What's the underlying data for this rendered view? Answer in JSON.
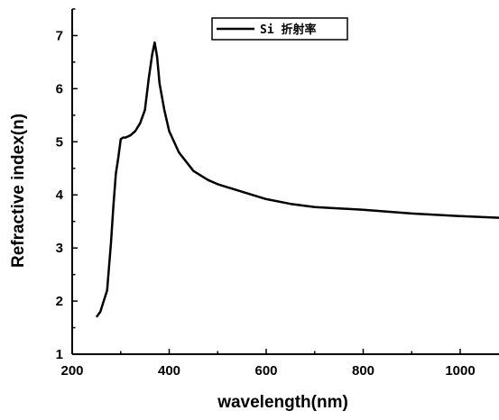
{
  "chart_data": {
    "type": "line",
    "xlabel": "wavelength(nm)",
    "ylabel": "Refractive index(n)",
    "xlim": [
      200,
      1080
    ],
    "ylim": [
      1,
      7.5
    ],
    "x_ticks": [
      "200",
      "400",
      "600",
      "800",
      "1000"
    ],
    "y_ticks": [
      "1",
      "2",
      "3",
      "4",
      "5",
      "6",
      "7"
    ],
    "legend_position": "top-center",
    "grid": false,
    "series": [
      {
        "name": "Si 折射率",
        "color": "#000000",
        "x": [
          250,
          258,
          265,
          272,
          280,
          285,
          290,
          295,
          300,
          305,
          310,
          320,
          330,
          340,
          350,
          358,
          365,
          370,
          375,
          380,
          390,
          400,
          420,
          450,
          480,
          500,
          550,
          600,
          650,
          700,
          800,
          900,
          1000,
          1080
        ],
        "y": [
          1.7,
          1.8,
          2.0,
          2.2,
          3.1,
          3.8,
          4.4,
          4.7,
          5.05,
          5.08,
          5.08,
          5.12,
          5.2,
          5.35,
          5.6,
          6.2,
          6.65,
          6.87,
          6.6,
          6.1,
          5.6,
          5.2,
          4.8,
          4.45,
          4.28,
          4.2,
          4.06,
          3.92,
          3.83,
          3.77,
          3.72,
          3.65,
          3.6,
          3.57
        ]
      }
    ]
  }
}
